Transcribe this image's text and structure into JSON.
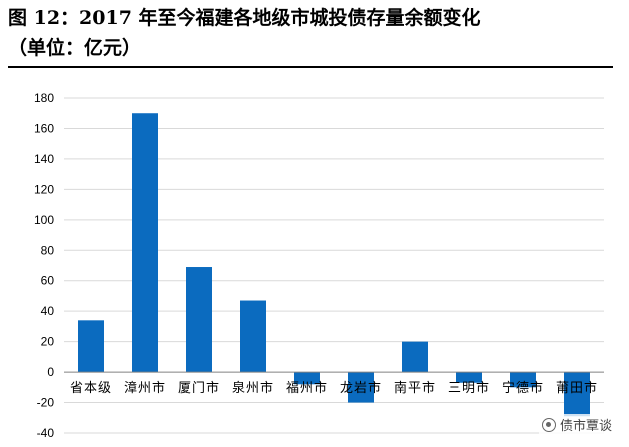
{
  "title": {
    "line1": "图 12：2017 年至今福建各地级市城投债存量余额变化",
    "line2": "（单位：亿元）"
  },
  "watermark": {
    "text": "债市覃谈",
    "icon": "wechat-icon"
  },
  "colors": {
    "bar": "#0b6bbf",
    "grid": "#d9d9d9",
    "axis": "#000000"
  },
  "chart_data": {
    "type": "bar",
    "title": "",
    "xlabel": "",
    "ylabel": "",
    "categories": [
      "省本级",
      "漳州市",
      "厦门市",
      "泉州市",
      "福州市",
      "龙岩市",
      "南平市",
      "三明市",
      "宁德市",
      "莆田市"
    ],
    "values": [
      34,
      170,
      69,
      47,
      -8,
      -20,
      20,
      -7,
      -10,
      -29
    ],
    "ylim": [
      -40,
      180
    ],
    "yticks": [
      -40,
      -20,
      0,
      20,
      40,
      60,
      80,
      100,
      120,
      140,
      160,
      180
    ],
    "grid": true,
    "legend": "none"
  }
}
